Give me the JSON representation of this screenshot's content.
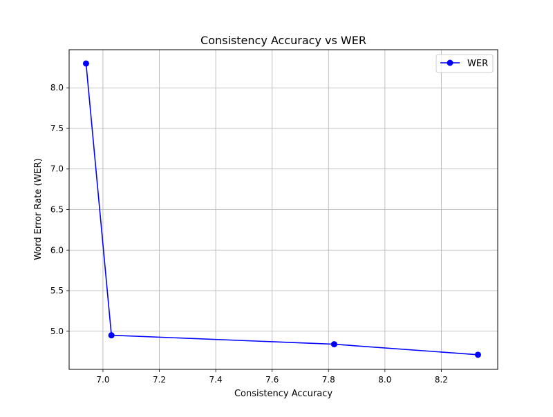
{
  "chart_data": {
    "type": "line",
    "title": "Consistency Accuracy vs WER",
    "xlabel": "Consistency Accuracy",
    "ylabel": "Word Error Rate (WER)",
    "xlim": [
      6.88,
      8.4
    ],
    "ylim": [
      4.53,
      8.47
    ],
    "xticks": [
      "7.0",
      "7.2",
      "7.4",
      "7.6",
      "7.8",
      "8.0",
      "8.2"
    ],
    "yticks": [
      "5.0",
      "5.5",
      "6.0",
      "6.5",
      "7.0",
      "7.5",
      "8.0"
    ],
    "grid": true,
    "legend_position": "top-right",
    "series": [
      {
        "name": "WER",
        "color": "#0000ff",
        "marker": "circle",
        "x": [
          6.94,
          7.03,
          7.82,
          8.33
        ],
        "y": [
          8.3,
          4.95,
          4.84,
          4.71
        ]
      }
    ]
  }
}
